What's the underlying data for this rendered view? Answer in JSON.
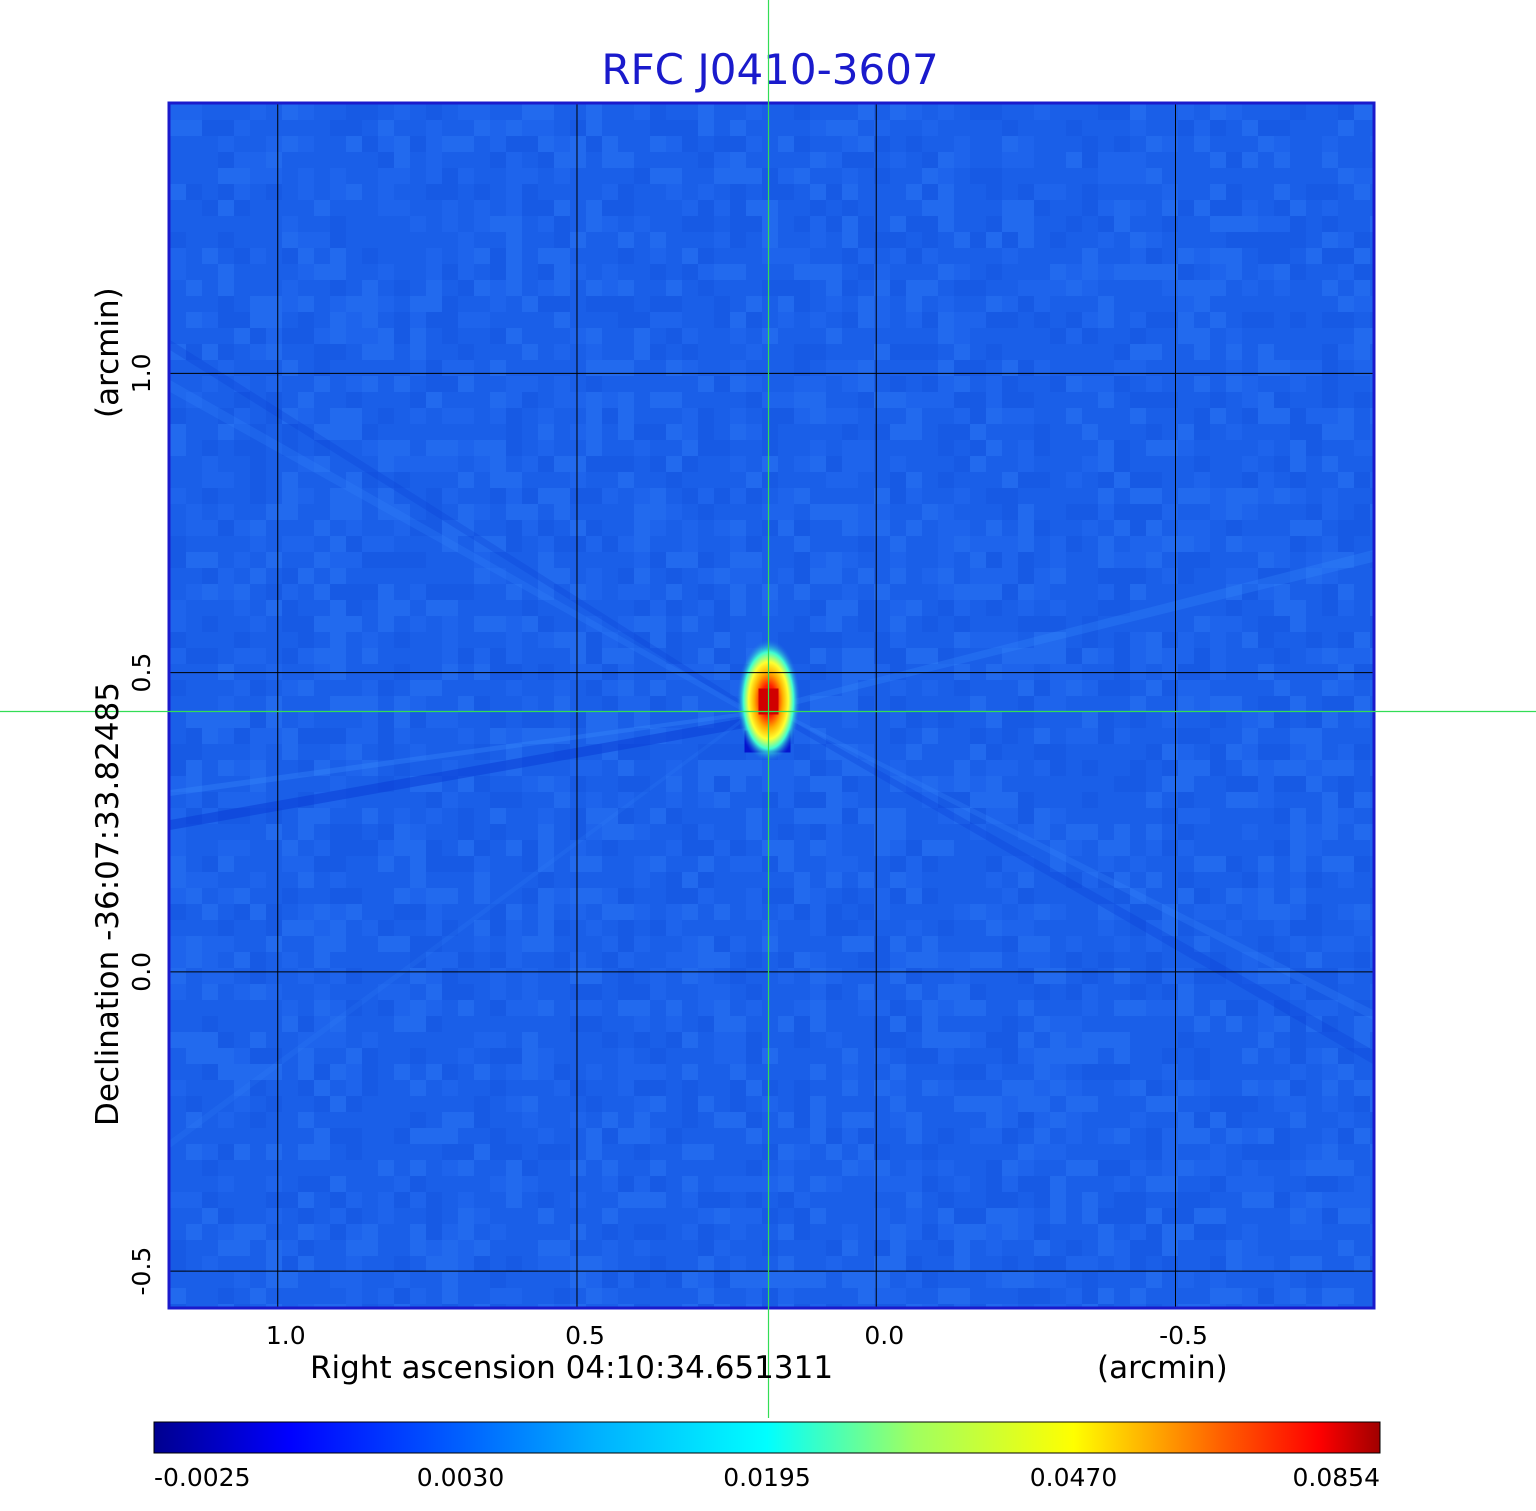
{
  "chart_data": {
    "type": "heatmap",
    "title": "RFC J0410-3607",
    "xlabel": "Right ascension  04:10:34.651311",
    "xunit": "(arcmin)",
    "ylabel": "Declination  -36:07:33.82485",
    "yunit": "(arcmin)",
    "x_ticks": [
      "1.0",
      "0.5",
      "0.0",
      "-0.5"
    ],
    "x_tick_values": [
      1.0,
      0.5,
      0.0,
      -0.5
    ],
    "y_ticks": [
      "1.0",
      "0.5",
      "0.0",
      "-0.5"
    ],
    "y_tick_values": [
      1.0,
      0.5,
      0.0,
      -0.5
    ],
    "xlim": [
      1.18,
      -0.83
    ],
    "ylim": [
      -0.56,
      1.45
    ],
    "grid": true,
    "colormap": "jet",
    "colorbar": {
      "position": "bottom",
      "tick_labels": [
        "-0.0025",
        "0.0030",
        "0.0195",
        "0.0470",
        "0.0854"
      ],
      "tick_values": [
        -0.0025,
        0.003,
        0.0195,
        0.047,
        0.0854
      ]
    },
    "background_value": 0.0008,
    "source": {
      "peak_value": 0.0854,
      "ra_offset": 0.18,
      "dec_offset": 0.44
    },
    "crosshair": {
      "ra_offset": 0.18,
      "dec_offset": 0.435
    }
  },
  "colors": {
    "title": "#1a1acc",
    "frame": "#1a1acc",
    "grid": "#000000",
    "crosshair": "#33dd55",
    "background_map": "#1a5fe8"
  }
}
